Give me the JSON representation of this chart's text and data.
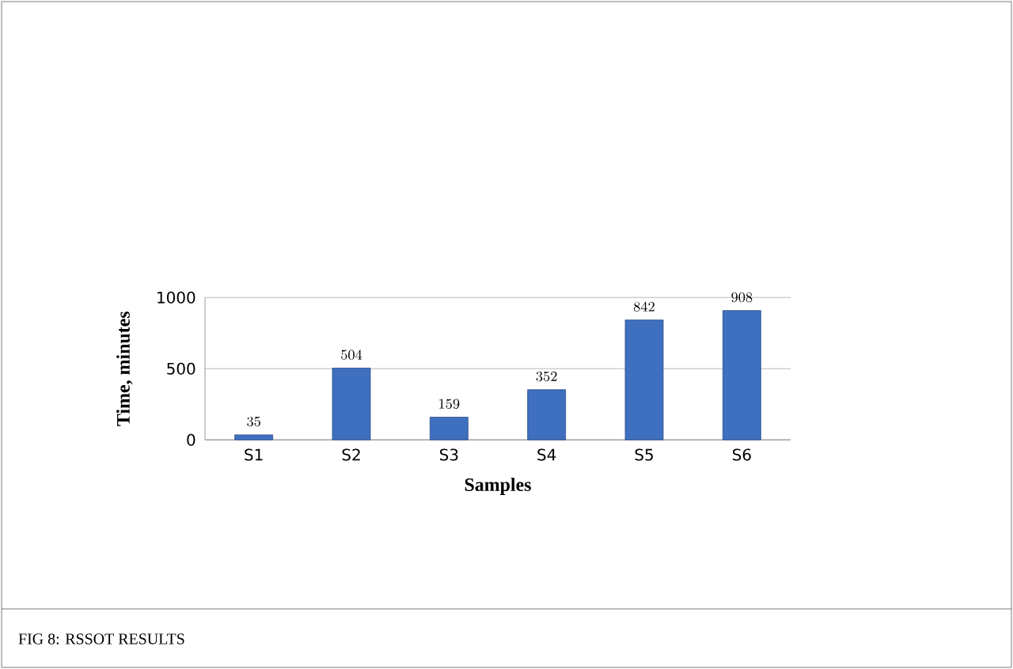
{
  "chart_data": {
    "type": "bar",
    "categories": [
      "S1",
      "S2",
      "S3",
      "S4",
      "S5",
      "S6"
    ],
    "values": [
      35,
      504,
      159,
      352,
      842,
      908
    ],
    "color": "#3f6fbf",
    "ylim": [
      0,
      1000
    ],
    "yticks": [
      0,
      500,
      1000
    ],
    "grid": "y",
    "data_labels": true,
    "xlabel": "Samples",
    "ylabel": "Time, minutes",
    "annotations": [
      "FIG 8:   RSSOT RESULTS"
    ]
  }
}
